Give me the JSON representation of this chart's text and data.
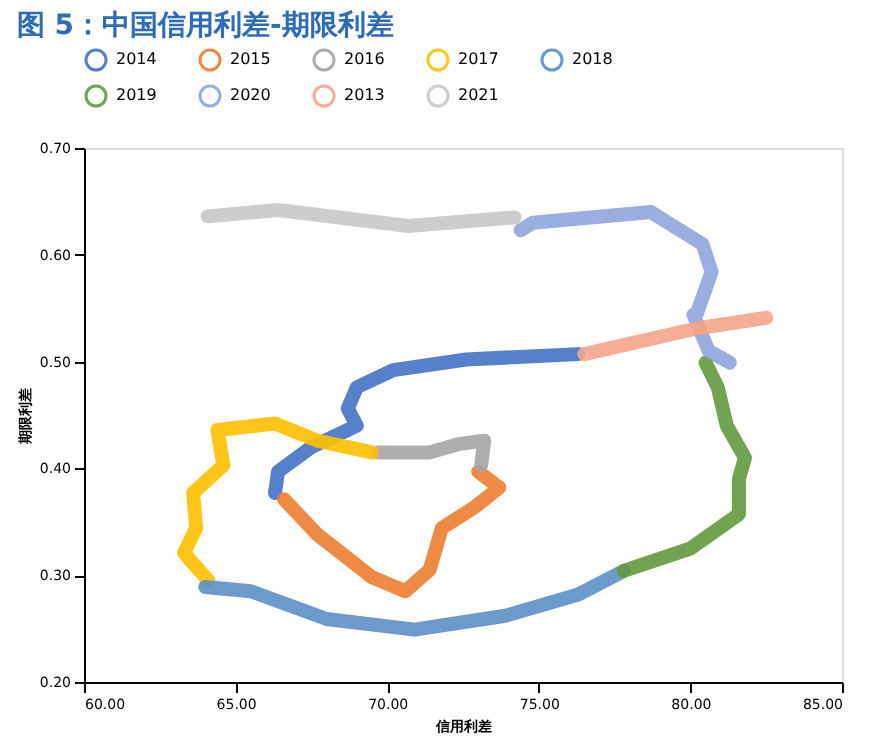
{
  "chart_data": {
    "type": "line",
    "title": "图 5：中国信用利差-期限利差",
    "xlabel": "信用利差",
    "ylabel": "期限利差",
    "xlim": [
      60,
      85
    ],
    "xticks": [
      {
        "value": 60,
        "label": "60.00"
      },
      {
        "value": 65,
        "label": "65.00"
      },
      {
        "value": 70,
        "label": "70.00"
      },
      {
        "value": 75,
        "label": "75.00"
      },
      {
        "value": 80,
        "label": "80.00"
      },
      {
        "value": 85,
        "label": "85.00"
      }
    ],
    "ylim": [
      0.2,
      0.7
    ],
    "yticks": [
      {
        "value": 0.2,
        "label": "0.20"
      },
      {
        "value": 0.3,
        "label": "0.30"
      },
      {
        "value": 0.4,
        "label": "0.40"
      },
      {
        "value": 0.5,
        "label": "0.50"
      },
      {
        "value": 0.6,
        "label": "0.60"
      },
      {
        "value": 0.7,
        "label": "0.70"
      }
    ],
    "grid": false,
    "legend": "top",
    "series": [
      {
        "name": "2014",
        "color": "#4472c4",
        "x": [
          76.3,
          72.6,
          70.2,
          69.0,
          68.7,
          69.0,
          67.5,
          66.4,
          66.3
        ],
        "values": [
          0.507,
          0.502,
          0.492,
          0.476,
          0.456,
          0.44,
          0.42,
          0.397,
          0.377
        ]
      },
      {
        "name": "2015",
        "color": "#ed7d31",
        "x": [
          66.6,
          67.7,
          69.5,
          70.6,
          71.4,
          71.8,
          72.9,
          73.7,
          73.0
        ],
        "values": [
          0.371,
          0.338,
          0.298,
          0.285,
          0.305,
          0.344,
          0.364,
          0.382,
          0.397
        ]
      },
      {
        "name": "2016",
        "color": "#a5a5a5",
        "x": [
          73.1,
          73.2,
          72.4,
          71.4,
          69.7
        ],
        "values": [
          0.403,
          0.426,
          0.423,
          0.415,
          0.415
        ]
      },
      {
        "name": "2017",
        "color": "#ffc000",
        "x": [
          69.5,
          67.7,
          66.3,
          64.4,
          64.6,
          63.6,
          63.7,
          63.3,
          64.1
        ],
        "values": [
          0.415,
          0.426,
          0.442,
          0.436,
          0.403,
          0.377,
          0.344,
          0.321,
          0.295
        ]
      },
      {
        "name": "2018",
        "color": "#5b8fc5",
        "x": [
          64.0,
          65.5,
          68.0,
          70.9,
          73.9,
          76.3,
          77.8
        ],
        "values": [
          0.289,
          0.285,
          0.259,
          0.249,
          0.262,
          0.282,
          0.304
        ]
      },
      {
        "name": "2019",
        "color": "#62993e",
        "x": [
          77.8,
          80.0,
          81.6,
          81.6,
          81.8,
          81.2,
          80.9,
          80.5
        ],
        "values": [
          0.304,
          0.325,
          0.357,
          0.39,
          0.41,
          0.44,
          0.476,
          0.499
        ]
      },
      {
        "name": "2020",
        "color": "#8fa5dc",
        "x": [
          81.3,
          80.6,
          80.1,
          80.2,
          80.7,
          80.4,
          78.7,
          74.8,
          74.4
        ],
        "values": [
          0.499,
          0.51,
          0.544,
          0.544,
          0.584,
          0.61,
          0.64,
          0.63,
          0.623
        ]
      },
      {
        "name": "2013",
        "color": "#f4a58a",
        "x": [
          82.5,
          80.2,
          76.5
        ],
        "values": [
          0.541,
          0.531,
          0.507
        ]
      },
      {
        "name": "2021",
        "color": "#c8c8c8",
        "x": [
          74.2,
          70.7,
          66.4,
          64.08
        ],
        "values": [
          0.635,
          0.627,
          0.642,
          0.636
        ]
      }
    ]
  }
}
